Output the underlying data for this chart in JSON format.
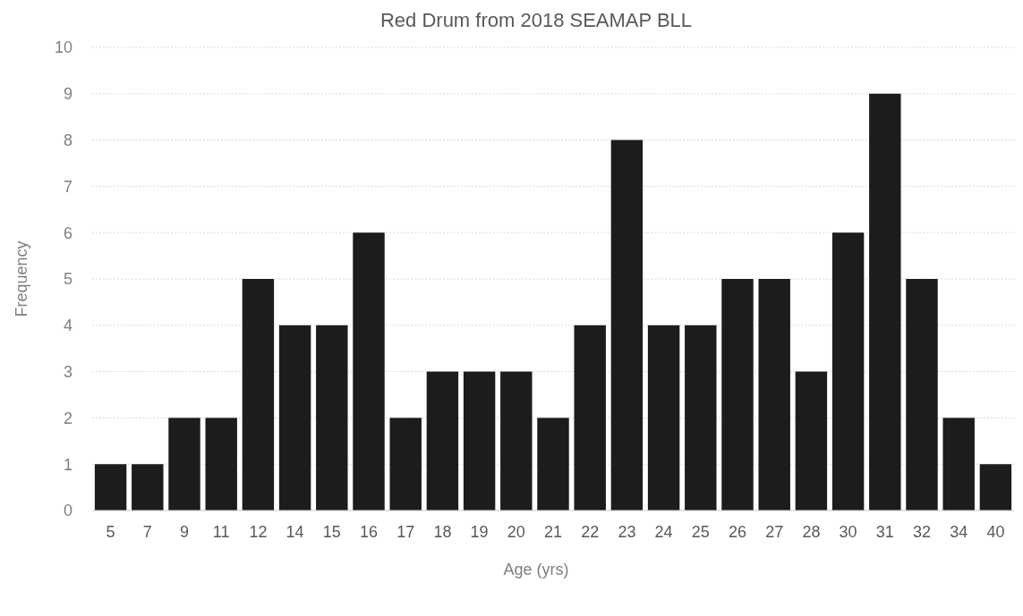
{
  "chart_data": {
    "type": "bar",
    "title": "Red Drum from 2018 SEAMAP BLL",
    "xlabel": "Age (yrs)",
    "ylabel": "Frequency",
    "categories": [
      "5",
      "7",
      "9",
      "11",
      "12",
      "14",
      "15",
      "16",
      "17",
      "18",
      "19",
      "20",
      "21",
      "22",
      "23",
      "24",
      "25",
      "26",
      "27",
      "28",
      "30",
      "31",
      "32",
      "34",
      "40"
    ],
    "values": [
      1,
      1,
      2,
      2,
      5,
      4,
      4,
      6,
      2,
      3,
      3,
      3,
      2,
      4,
      8,
      4,
      4,
      5,
      5,
      3,
      6,
      9,
      5,
      2,
      1
    ],
    "color": "#1c1c1c",
    "ylim": [
      0,
      10
    ],
    "yticks": [
      0,
      1,
      2,
      3,
      4,
      5,
      6,
      7,
      8,
      9,
      10
    ],
    "grid": "y"
  }
}
